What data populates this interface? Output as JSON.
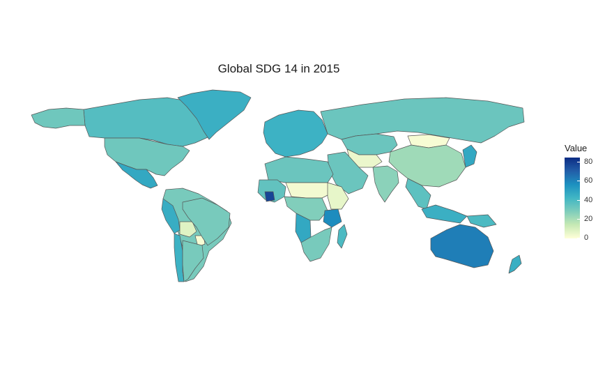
{
  "title": "Global SDG 14 in 2015",
  "legend": {
    "title": "Value",
    "ticks": [
      "80",
      "60",
      "40",
      "20",
      "0"
    ],
    "min": 0,
    "max": 85,
    "colors": [
      "#ffffd9",
      "#c7e9b4",
      "#7fcdbb",
      "#41b6c4",
      "#1d91c0",
      "#225ea8",
      "#0c2c84"
    ]
  },
  "regions": [
    {
      "name": "Canada",
      "value": 38
    },
    {
      "name": "United States",
      "value": 32
    },
    {
      "name": "Greenland",
      "value": 45
    },
    {
      "name": "Alaska",
      "value": 32
    },
    {
      "name": "Mexico",
      "value": 48
    },
    {
      "name": "South America",
      "value": 30
    },
    {
      "name": "Peru",
      "value": 46
    },
    {
      "name": "Bolivia",
      "value": 8
    },
    {
      "name": "Paraguay",
      "value": 2
    },
    {
      "name": "Brazil",
      "value": 30
    },
    {
      "name": "Chile",
      "value": 44
    },
    {
      "name": "Argentina",
      "value": 30
    },
    {
      "name": "Europe",
      "value": 44
    },
    {
      "name": "Russia",
      "value": 33
    },
    {
      "name": "Kazakhstan",
      "value": 33
    },
    {
      "name": "Mongolia",
      "value": 2
    },
    {
      "name": "China",
      "value": 22
    },
    {
      "name": "Central Asia",
      "value": 5
    },
    {
      "name": "Middle East",
      "value": 33
    },
    {
      "name": "India",
      "value": 26
    },
    {
      "name": "Southeast Asia",
      "value": 36
    },
    {
      "name": "Japan",
      "value": 48
    },
    {
      "name": "North Africa",
      "value": 33
    },
    {
      "name": "West Africa",
      "value": 35
    },
    {
      "name": "Ivory Coast",
      "value": 78
    },
    {
      "name": "Sahel",
      "value": 3
    },
    {
      "name": "Central Africa",
      "value": 28
    },
    {
      "name": "East Africa",
      "value": 6
    },
    {
      "name": "Tanzania",
      "value": 58
    },
    {
      "name": "Angola",
      "value": 48
    },
    {
      "name": "Southern Africa",
      "value": 30
    },
    {
      "name": "Madagascar",
      "value": 40
    },
    {
      "name": "Indonesia",
      "value": 45
    },
    {
      "name": "Papua New Guinea",
      "value": 40
    },
    {
      "name": "Australia",
      "value": 62
    },
    {
      "name": "New Zealand",
      "value": 45
    }
  ]
}
